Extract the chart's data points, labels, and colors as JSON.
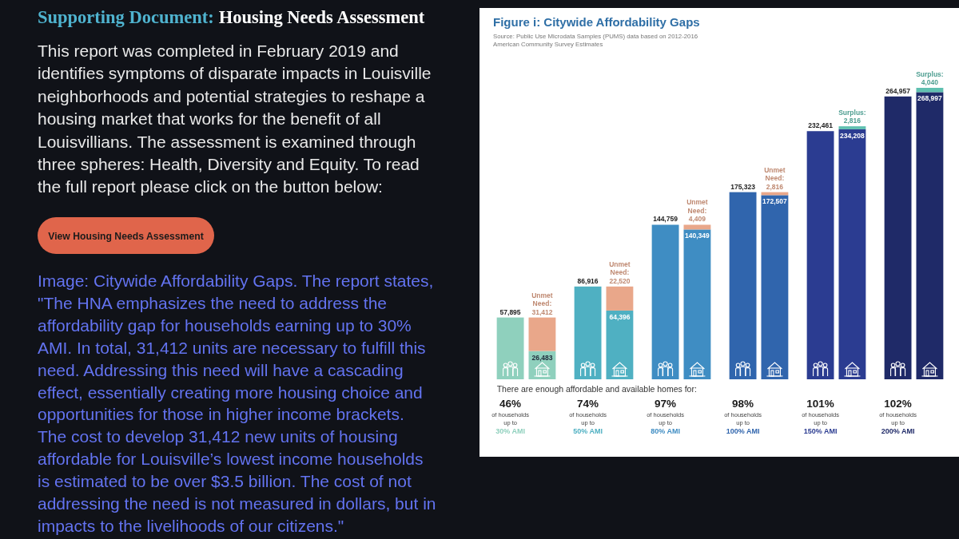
{
  "chart_data": {
    "type": "bar",
    "title": "Figure i: Citywide Affordability Gaps",
    "subtitle": "Source: Public Use Microdata Samples (PUMS) data based on 2012-2016\nAmerican Community Survey Estimates",
    "xlabel": "There are enough affordable and available homes for:",
    "categories": [
      "46%\nof households\nup to\n30% AMI",
      null,
      "74%\nof households\nup to\n50% AMI",
      null,
      "97%\nof households\nup to\n80% AMI",
      null,
      "98%\nof households\nup to\n100% AMI",
      null,
      "101%\nof households\nup to\n150% AMI",
      null,
      "102%\nof households\nup to\n200% AMI",
      null
    ],
    "series": [
      {
        "values": [
          57895,
          26483,
          86916,
          64396,
          144759,
          140349,
          175323,
          172507,
          232461,
          234208,
          264957,
          268997
        ],
        "value_labels": [
          "57,895",
          "26,483",
          "86,916",
          "64,396",
          "144,759",
          "140,349",
          "175,323",
          "172,507",
          "232,461",
          "234,208",
          "264,957",
          "268,997"
        ],
        "colors": [
          "#8fd0bd",
          "#8fd0bd",
          "#4fb0c2",
          "#4fb0c2",
          "#3f8dc3",
          "#3f8dc3",
          "#3065ad",
          "#3065ad",
          "#2b3c91",
          "#2b3c91",
          "#1f2a68",
          "#1f2a68"
        ]
      },
      {
        "name": "Unmet Need:",
        "color": "#e9a78a",
        "values": [
          null,
          31412,
          null,
          22520,
          null,
          4409,
          null,
          2816,
          null,
          null,
          null,
          null
        ],
        "value_labels": [
          null,
          "31,412",
          null,
          "22,520",
          null,
          "4,409",
          null,
          "2,816",
          null,
          null,
          null,
          null
        ]
      },
      {
        "name": "Surplus:",
        "color": "#5fc0b0",
        "values": [
          null,
          null,
          null,
          null,
          null,
          null,
          null,
          null,
          null,
          2816,
          null,
          4040
        ],
        "value_labels": [
          null,
          null,
          null,
          null,
          null,
          null,
          null,
          null,
          null,
          "2,816",
          null,
          "4,040"
        ]
      }
    ],
    "stacked": true,
    "tick_labels": "x",
    "annotations": [
      "Supporting Document:",
      "Housing Needs Assessment",
      "This report was completed in February 2019 and\nidentifies symptoms of disparate impacts in Louisville\nneighborhoods and potential strategies to reshape a\nhousing market that works for the benefit of all\nLouisvillians. The assessment is examined through\nthree spheres: Health, Diversity and Equity. To read\nthe full report please click on the button below:",
      "View Housing Needs Assessment",
      "Image: Citywide Affordability Gaps. The report states,\n\"The HNA emphasizes the need to address the\naffordability gap for households earning up to 30%\nAMI. In total, 31,412 units are necessary to fulfill this\nneed. Addressing this need will have a cascading\neffect, essentially creating more housing choice and\nopportunities for those in higher income brackets.\nThe cost to develop 31,412 new units of housing\naffordable for Louisville’s lowest income households\nis estimated to be over $3.5 billion. The cost of not\naddressing the need is not measured in dollars, but in\nimpacts to the livelihoods of our citizens.\""
    ]
  }
}
